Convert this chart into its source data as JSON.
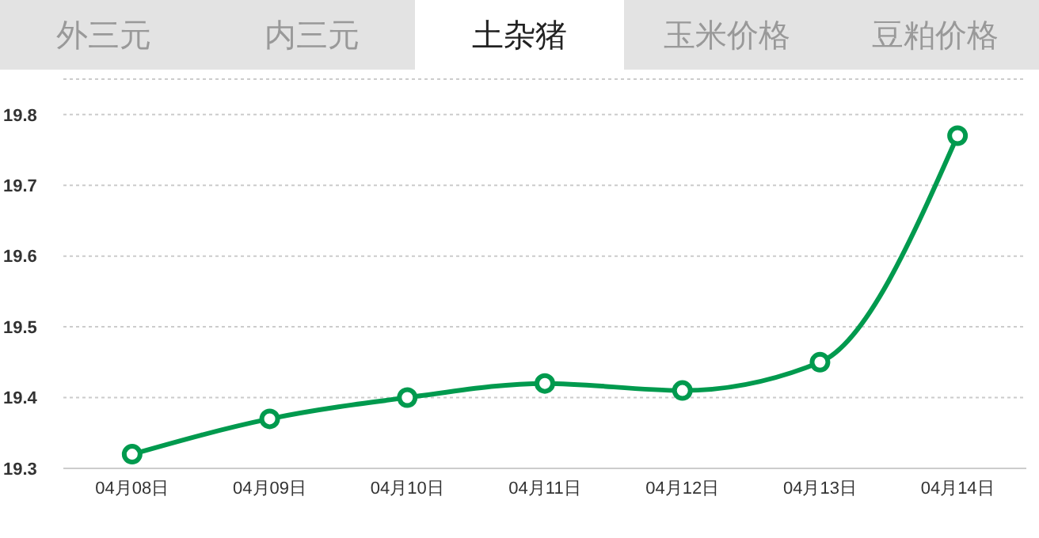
{
  "chart_data": {
    "type": "line",
    "title": "土杂猪",
    "annotations": [
      "外三元",
      "内三元",
      "玉米价格",
      "豆粕价格"
    ],
    "categories": [
      "04月08日",
      "04月09日",
      "04月10日",
      "04月11日",
      "04月12日",
      "04月13日",
      "04月14日"
    ],
    "series": [
      {
        "color": "#009a4e",
        "values": [
          19.32,
          19.37,
          19.4,
          19.42,
          19.41,
          19.45,
          19.77
        ]
      }
    ],
    "ylim": [
      19.3,
      19.85
    ],
    "yticks": [
      19.3,
      19.4,
      19.5,
      19.6,
      19.7,
      19.8
    ],
    "grid": "y",
    "marker": "circle",
    "line_style": "solid"
  }
}
